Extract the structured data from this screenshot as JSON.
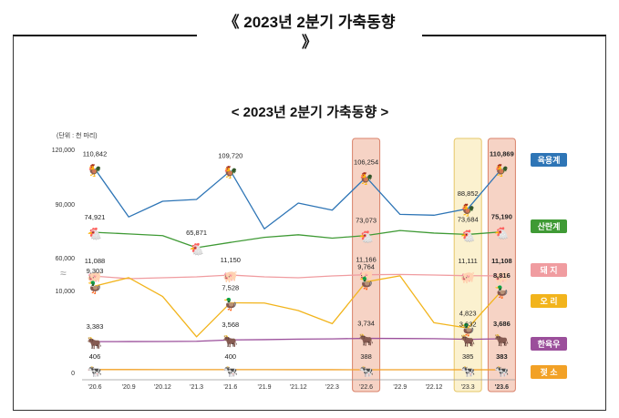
{
  "outer_title": "《 2023년 2분기 가축동향",
  "outer_title_close": "》",
  "colors": {
    "broiler": "#2e75b6",
    "layer": "#3f9a35",
    "pig": "#f09ca0",
    "duck": "#f2b41c",
    "hanwoo": "#9b4f9b",
    "dairy": "#f2a126",
    "highlight_fill": "#f6d3c5",
    "highlight_stroke": "#d9826a",
    "highlight_yellow_fill": "#fbf1cf",
    "highlight_yellow_stroke": "#e6c769"
  },
  "chart_data": {
    "type": "line",
    "title": "< 2023년 2분기 가축동향 >",
    "unit_label": "(단위 : 천 마리)",
    "y_tick_labels": [
      "120,000",
      "90,000",
      "60,000",
      "10,000",
      "0"
    ],
    "axis_break": "≈",
    "categories": [
      "'20.6",
      "'20.9",
      "'20.12",
      "'21.3",
      "'21.6",
      "'21.9",
      "'21.12",
      "'22.3",
      "'22.6",
      "'22.9",
      "'22.12",
      "'23.3",
      "'23.6"
    ],
    "highlight_columns": [
      "'22.6",
      "'23.3",
      "'23.6"
    ],
    "series": [
      {
        "key": "broiler",
        "name": "육용계",
        "icon": "chicken-icon",
        "values": [
          110842,
          84000,
          93000,
          94000,
          109720,
          77000,
          92000,
          88000,
          106254,
          85500,
          85000,
          88852,
          110869
        ],
        "labels": {
          "0": "110,842",
          "4": "109,720",
          "8": "106,254",
          "11": "88,852",
          "12": "110,869"
        }
      },
      {
        "key": "layer",
        "name": "산란계",
        "icon": "hen-icon",
        "values": [
          74921,
          74000,
          73000,
          65871,
          69000,
          72000,
          73500,
          71500,
          73073,
          76000,
          74500,
          73684,
          75190
        ],
        "labels": {
          "0": "74,921",
          "3": "65,871",
          "8": "73,073",
          "11": "73,684",
          "12": "75,190"
        }
      },
      {
        "key": "pig",
        "name": "돼 지",
        "icon": "pig-icon",
        "values": [
          11088,
          10950,
          11000,
          11050,
          11150,
          11050,
          11000,
          11100,
          11166,
          11180,
          11150,
          11111,
          11108
        ],
        "labels": {
          "0": "11,088",
          "4": "11,150",
          "8": "11,166",
          "11": "11,111",
          "12": "11,108"
        }
      },
      {
        "key": "duck",
        "name": "오 리",
        "icon": "duck-icon",
        "values": [
          9303,
          10200,
          8200,
          3900,
          7528,
          7500,
          6700,
          5300,
          9764,
          10400,
          5400,
          4823,
          8816
        ],
        "labels": {
          "0": "9,303",
          "4": "7,528",
          "8": "9,764",
          "11": "4,823",
          "12": "8,816"
        }
      },
      {
        "key": "hanwoo",
        "name": "한육우",
        "icon": "cow-icon",
        "values": [
          3383,
          3390,
          3400,
          3420,
          3568,
          3600,
          3650,
          3680,
          3734,
          3720,
          3700,
          3632,
          3686
        ],
        "labels": {
          "0": "3,383",
          "4": "3,568",
          "8": "3,734",
          "11": "3,632",
          "12": "3,686"
        }
      },
      {
        "key": "dairy",
        "name": "젖 소",
        "icon": "dairy-cow-icon",
        "values": [
          406,
          405,
          403,
          401,
          400,
          398,
          395,
          392,
          388,
          387,
          386,
          385,
          383
        ],
        "labels": {
          "0": "406",
          "4": "400",
          "8": "388",
          "11": "385",
          "12": "383"
        }
      }
    ]
  }
}
